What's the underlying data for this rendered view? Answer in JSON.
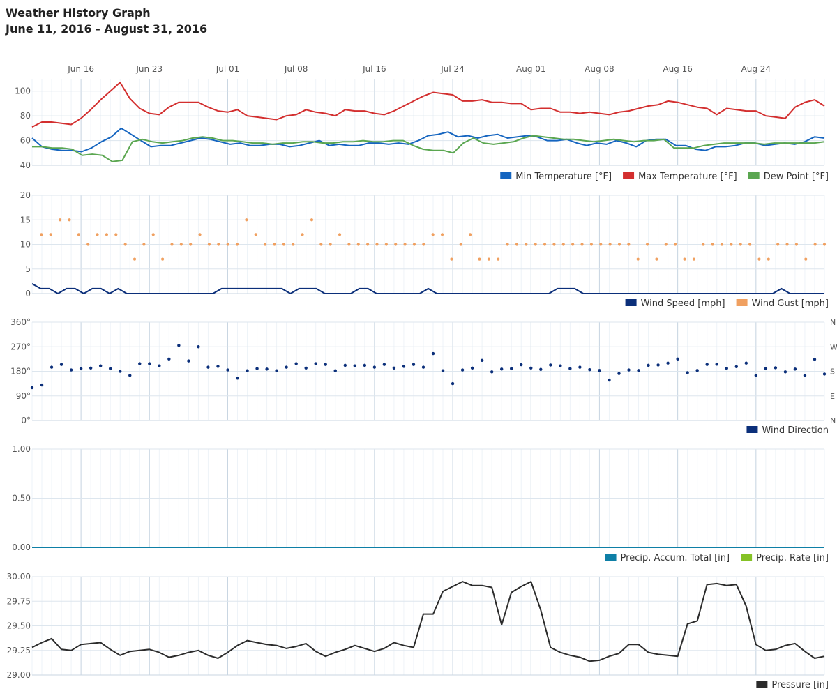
{
  "header": {
    "title": "Weather History Graph",
    "subtitle": "June 11, 2016 - August 31, 2016"
  },
  "colors": {
    "min_temp": "#1565c0",
    "max_temp": "#d32f2f",
    "dew_point": "#5aa650",
    "wind_speed": "#0b2f7a",
    "wind_gust": "#f0a060",
    "wind_dir": "#0b2f7a",
    "precip_total": "#0e7fa6",
    "precip_rate": "#85c226",
    "pressure": "#2b2b2b",
    "grid": "#dde6ee",
    "minor_grid": "#eef3f8"
  },
  "chart_data": {
    "type": "line",
    "x_start": "2016-06-11",
    "x_end": "2016-08-31",
    "x_ticks": [
      "Jun 16",
      "Jun 23",
      "Jul 01",
      "Jul 08",
      "Jul 16",
      "Jul 24",
      "Aug 01",
      "Aug 08",
      "Aug 16",
      "Aug 24"
    ],
    "panels": [
      {
        "id": "temperature",
        "type": "line",
        "ylim": [
          40,
          110
        ],
        "y_ticks": [
          "40",
          "60",
          "80",
          "100"
        ],
        "series": [
          {
            "name": "Min Temperature [°F]",
            "color_key": "min_temp",
            "values": [
              62,
              55,
              53,
              52,
              52,
              51,
              54,
              59,
              63,
              70,
              65,
              60,
              55,
              56,
              56,
              58,
              60,
              62,
              61,
              59,
              57,
              58,
              56,
              56,
              57,
              57,
              55,
              56,
              58,
              60,
              56,
              57,
              56,
              56,
              58,
              58,
              57,
              58,
              57,
              60,
              64,
              65,
              67,
              63,
              64,
              62,
              64,
              65,
              62,
              63,
              64,
              63,
              60,
              60,
              61,
              58,
              56,
              58,
              57,
              60,
              58,
              55,
              60,
              61,
              61,
              56,
              56,
              53,
              52,
              55,
              55,
              56,
              58,
              58,
              56,
              57,
              58,
              57,
              59,
              63,
              62
            ]
          },
          {
            "name": "Max Temperature [°F]",
            "color_key": "max_temp",
            "values": [
              71,
              75,
              75,
              74,
              73,
              78,
              85,
              93,
              100,
              107,
              94,
              86,
              82,
              81,
              87,
              91,
              91,
              91,
              87,
              84,
              83,
              85,
              80,
              79,
              78,
              77,
              80,
              81,
              85,
              83,
              82,
              80,
              85,
              84,
              84,
              82,
              81,
              84,
              88,
              92,
              96,
              99,
              98,
              97,
              92,
              92,
              93,
              91,
              91,
              90,
              90,
              85,
              86,
              86,
              83,
              83,
              82,
              83,
              82,
              81,
              83,
              84,
              86,
              88,
              89,
              92,
              91,
              89,
              87,
              86,
              81,
              86,
              85,
              84,
              84,
              80,
              79,
              78,
              87,
              91,
              93,
              88
            ]
          },
          {
            "name": "Dew Point [°F]",
            "color_key": "dew_point",
            "values": [
              55,
              55,
              54,
              54,
              53,
              48,
              49,
              48,
              43,
              44,
              59,
              61,
              59,
              58,
              59,
              60,
              62,
              63,
              62,
              60,
              60,
              59,
              58,
              58,
              57,
              58,
              58,
              59,
              59,
              58,
              58,
              59,
              59,
              60,
              59,
              59,
              60,
              60,
              56,
              53,
              52,
              52,
              50,
              58,
              62,
              58,
              57,
              58,
              59,
              62,
              64,
              63,
              62,
              61,
              61,
              60,
              59,
              60,
              61,
              60,
              59,
              60,
              60,
              61,
              54,
              54,
              54,
              56,
              57,
              58,
              58,
              58,
              58,
              57,
              58,
              58,
              58,
              58,
              58,
              59
            ]
          }
        ],
        "legend": [
          "Min Temperature [°F]",
          "Max Temperature [°F]",
          "Dew Point [°F]"
        ]
      },
      {
        "id": "wind",
        "type": "line",
        "ylim": [
          0,
          20
        ],
        "y_ticks": [
          "0",
          "5",
          "10",
          "15",
          "20"
        ],
        "series": [
          {
            "name": "Wind Speed [mph]",
            "color_key": "wind_speed",
            "mark": "line",
            "values": [
              2,
              1,
              1,
              0,
              1,
              1,
              0,
              1,
              1,
              0,
              1,
              0,
              0,
              0,
              0,
              0,
              0,
              0,
              0,
              0,
              0,
              0,
              1,
              1,
              1,
              1,
              1,
              1,
              1,
              1,
              0,
              1,
              1,
              1,
              0,
              0,
              0,
              0,
              1,
              1,
              0,
              0,
              0,
              0,
              0,
              0,
              1,
              0,
              0,
              0,
              0,
              0,
              0,
              0,
              0,
              0,
              0,
              0,
              0,
              0,
              0,
              1,
              1,
              1,
              0,
              0,
              0,
              0,
              0,
              0,
              0,
              0,
              0,
              0,
              0,
              0,
              0,
              0,
              0,
              0,
              0,
              0,
              0,
              0,
              0,
              0,
              0,
              1,
              0,
              0,
              0,
              0,
              0
            ]
          },
          {
            "name": "Wind Gust [mph]",
            "color_key": "wind_gust",
            "mark": "dots",
            "values": [
              null,
              12,
              12,
              15,
              15,
              12,
              10,
              12,
              12,
              12,
              10,
              7,
              10,
              12,
              7,
              10,
              10,
              10,
              12,
              10,
              10,
              10,
              10,
              15,
              12,
              10,
              10,
              10,
              10,
              12,
              15,
              10,
              10,
              12,
              10,
              10,
              10,
              10,
              10,
              10,
              10,
              10,
              10,
              12,
              12,
              7,
              10,
              12,
              7,
              7,
              7,
              10,
              10,
              10,
              10,
              10,
              10,
              10,
              10,
              10,
              10,
              10,
              10,
              10,
              10,
              7,
              10,
              7,
              10,
              10,
              7,
              7,
              10,
              10,
              10,
              10,
              10,
              10,
              7,
              7,
              10,
              10,
              10,
              7,
              10,
              10
            ]
          }
        ],
        "legend": [
          "Wind Speed [mph]",
          "Wind Gust [mph]"
        ]
      },
      {
        "id": "direction",
        "type": "scatter",
        "ylim": [
          0,
          360
        ],
        "y_ticks": [
          "0°",
          "90°",
          "180°",
          "270°",
          "360°"
        ],
        "y_ticks_right": [
          "N",
          "E",
          "S",
          "W",
          "N"
        ],
        "series": [
          {
            "name": "Wind Direction",
            "color_key": "wind_dir",
            "values": [
              120,
              130,
              195,
              205,
              185,
              190,
              192,
              200,
              190,
              180,
              165,
              208,
              208,
              200,
              225,
              275,
              218,
              270,
              195,
              198,
              185,
              155,
              182,
              190,
              188,
              182,
              195,
              208,
              192,
              208,
              205,
              182,
              202,
              200,
              202,
              195,
              205,
              192,
              198,
              205,
              195,
              245,
              182,
              135,
              185,
              192,
              220,
              178,
              188,
              190,
              204,
              192,
              187,
              203,
              200,
              190,
              195,
              186,
              183,
              148,
              172,
              185,
              183,
              202,
              203,
              210,
              225,
              175,
              183,
              205,
              206,
              191,
              197,
              210,
              165,
              190,
              193,
              178,
              188,
              165,
              224,
              170
            ]
          }
        ],
        "legend": [
          "Wind Direction"
        ]
      },
      {
        "id": "precip",
        "type": "line",
        "ylim": [
          0,
          1
        ],
        "y_ticks": [
          "0.00",
          "0.50",
          "1.00"
        ],
        "series": [
          {
            "name": "Precip. Accum. Total [in]",
            "color_key": "precip_total",
            "values": [
              0,
              0
            ]
          },
          {
            "name": "Precip. Rate [in]",
            "color_key": "precip_rate",
            "values": []
          }
        ],
        "legend": [
          "Precip. Accum. Total [in]",
          "Precip. Rate [in]"
        ]
      },
      {
        "id": "pressure",
        "type": "line",
        "ylim": [
          29.0,
          30.0
        ],
        "y_ticks": [
          "29.00",
          "29.25",
          "29.50",
          "29.75",
          "30.00"
        ],
        "series": [
          {
            "name": "Pressure [in]",
            "color_key": "pressure",
            "values": [
              29.28,
              29.33,
              29.37,
              29.26,
              29.25,
              29.31,
              29.32,
              29.33,
              29.26,
              29.2,
              29.24,
              29.25,
              29.26,
              29.23,
              29.18,
              29.2,
              29.23,
              29.25,
              29.2,
              29.17,
              29.23,
              29.3,
              29.35,
              29.33,
              29.31,
              29.3,
              29.27,
              29.29,
              29.32,
              29.24,
              29.19,
              29.23,
              29.26,
              29.3,
              29.27,
              29.24,
              29.27,
              29.33,
              29.3,
              29.28,
              29.62,
              29.62,
              29.85,
              29.9,
              29.95,
              29.91,
              29.91,
              29.89,
              29.51,
              29.84,
              29.9,
              29.95,
              29.66,
              29.28,
              29.23,
              29.2,
              29.18,
              29.14,
              29.15,
              29.19,
              29.22,
              29.31,
              29.31,
              29.23,
              29.21,
              29.2,
              29.19,
              29.52,
              29.55,
              29.92,
              29.93,
              29.91,
              29.92,
              29.7,
              29.31,
              29.25,
              29.26,
              29.3,
              29.32,
              29.24,
              29.17,
              29.19
            ]
          }
        ],
        "legend": [
          "Pressure [in]"
        ]
      }
    ]
  }
}
